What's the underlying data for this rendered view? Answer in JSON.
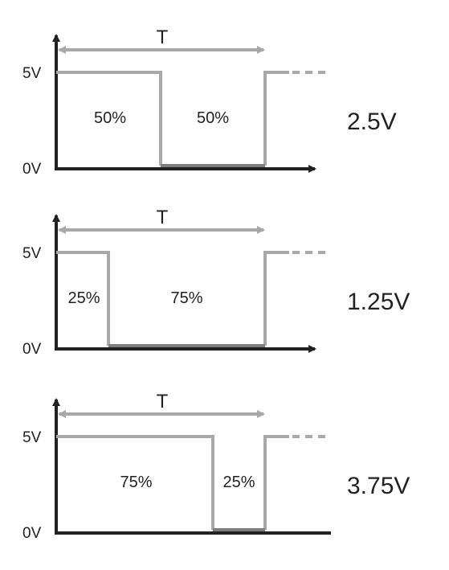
{
  "panels": [
    {
      "period_label": "T",
      "high_label": "5V",
      "low_label": "0V",
      "high_label_text": "50%",
      "low_label_text": "50%",
      "duty_cycle": 0.5,
      "average_label": "2.5V"
    },
    {
      "period_label": "T",
      "high_label": "5V",
      "low_label": "0V",
      "high_label_text": "25%",
      "low_label_text": "75%",
      "duty_cycle": 0.25,
      "average_label": "1.25V"
    },
    {
      "period_label": "T",
      "high_label": "5V",
      "low_label": "0V",
      "high_label_text": "75%",
      "low_label_text": "25%",
      "duty_cycle": 0.75,
      "average_label": "3.75V"
    }
  ],
  "colors": {
    "axis": "#222222",
    "signal": "#a8a8a8",
    "low_signal": "#7f7f7f",
    "text": "#222222"
  }
}
